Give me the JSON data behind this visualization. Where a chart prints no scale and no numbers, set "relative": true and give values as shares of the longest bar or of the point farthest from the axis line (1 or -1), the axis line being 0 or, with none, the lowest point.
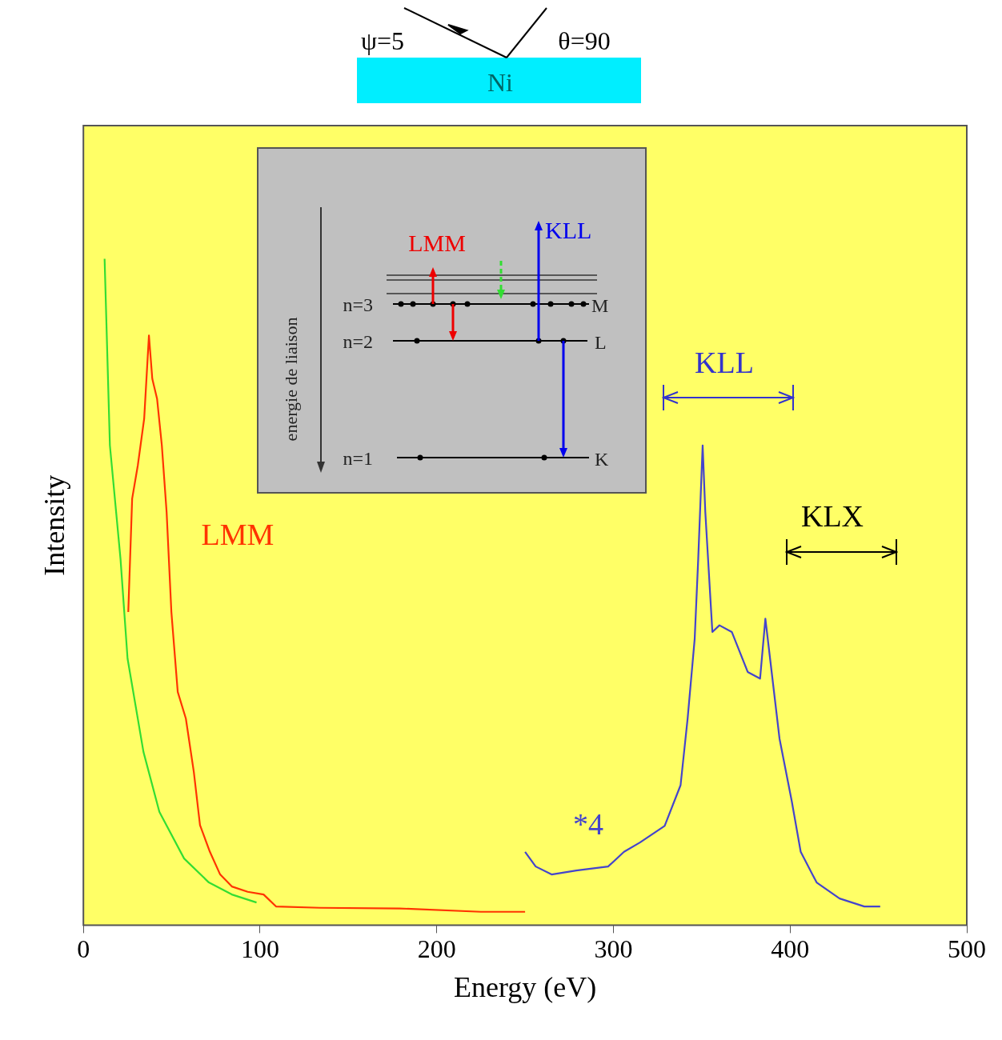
{
  "chart_data": {
    "type": "line",
    "xlabel": "Energy (eV)",
    "ylabel": "Intensity",
    "relative": true,
    "xlim": [
      0,
      500
    ],
    "xticks": [
      0,
      100,
      200,
      300,
      400,
      500
    ],
    "grid": false,
    "legend": false,
    "marker": "none",
    "line_style": "solid",
    "series": [
      {
        "color": "#33dd33",
        "x": [
          12,
          15,
          21,
          25,
          34,
          43,
          57,
          71,
          84,
          98
        ],
        "values": [
          1.0,
          0.72,
          0.55,
          0.4,
          0.26,
          0.17,
          0.1,
          0.064,
          0.046,
          0.034
        ]
      },
      {
        "color": "#ff3300",
        "x": [
          25.4,
          27.6,
          30.8,
          34.4,
          37.1,
          39,
          41.7,
          44.4,
          47.1,
          49.8,
          53.4,
          58,
          62.5,
          66,
          71.6,
          77.4,
          84,
          93,
          102,
          109,
          134,
          179,
          225,
          250
        ],
        "values": [
          0.47,
          0.64,
          0.69,
          0.76,
          0.885,
          0.82,
          0.79,
          0.72,
          0.62,
          0.47,
          0.35,
          0.31,
          0.23,
          0.15,
          0.11,
          0.076,
          0.058,
          0.05,
          0.046,
          0.028,
          0.026,
          0.025,
          0.02,
          0.02
        ]
      },
      {
        "color": "#4444cc",
        "x": [
          250,
          256,
          265,
          279,
          297,
          306,
          315,
          329,
          338,
          342,
          346,
          348,
          350.5,
          352,
          356,
          360,
          367,
          376,
          383,
          386,
          390,
          394,
          401,
          406,
          415,
          428,
          442,
          451
        ],
        "values": [
          0.11,
          0.088,
          0.076,
          0.082,
          0.088,
          0.11,
          0.124,
          0.149,
          0.21,
          0.31,
          0.43,
          0.55,
          0.72,
          0.62,
          0.44,
          0.45,
          0.44,
          0.38,
          0.37,
          0.46,
          0.37,
          0.28,
          0.185,
          0.11,
          0.064,
          0.04,
          0.028,
          0.028
        ]
      }
    ],
    "annotations": [
      "ψ=5",
      "θ=90",
      "Ni",
      "energie de liaison",
      "n=3",
      "n=2",
      "n=1",
      "M",
      "L",
      "K",
      "LMM",
      "KLL",
      "LMM",
      "*4",
      "KLL",
      "KLX"
    ]
  }
}
